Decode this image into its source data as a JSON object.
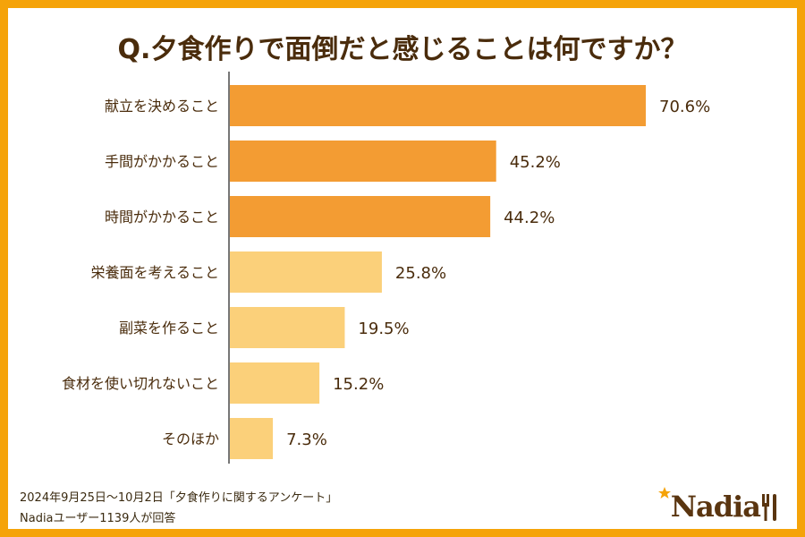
{
  "chart_data": {
    "type": "bar",
    "orientation": "horizontal",
    "title": "Q.夕食作りで面倒だと感じることは何ですか？",
    "categories": [
      "献立を決めること",
      "手間がかかること",
      "時間がかかること",
      "栄養面を考えること",
      "副菜を作ること",
      "食材を使い切れないこと",
      "そのほか"
    ],
    "values": [
      70.6,
      45.2,
      44.2,
      25.8,
      19.5,
      15.2,
      7.3
    ],
    "data_labels": [
      "70.6%",
      "45.2%",
      "44.2%",
      "25.8%",
      "19.5%",
      "15.2%",
      "7.3%"
    ],
    "highlight_count": 3,
    "colors": {
      "highlight": "#f39c33",
      "normal": "#fbd07a",
      "axis": "#777777",
      "frame": "#f5a309"
    }
  },
  "footer": {
    "line1": "2024年9月25日〜10月2日「夕食作りに関するアンケート」",
    "line2": "Nadiaユーザー1139人が回答"
  },
  "logo": {
    "text": "Nadia"
  }
}
